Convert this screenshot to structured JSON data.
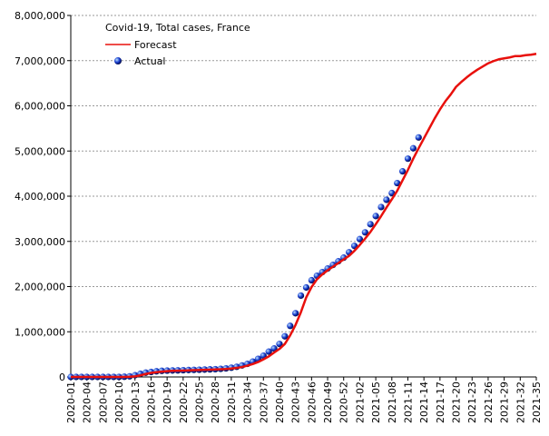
{
  "chart_data": {
    "type": "line",
    "title": "Covid-19, Total cases, France",
    "categories": [
      "2020-01",
      null,
      null,
      "2020-04",
      null,
      null,
      "2020-07",
      null,
      null,
      "2020-10",
      null,
      null,
      "2020-13",
      null,
      null,
      "2020-16",
      null,
      null,
      "2020-19",
      null,
      null,
      "2020-22",
      null,
      null,
      "2020-25",
      null,
      null,
      "2020-28",
      null,
      null,
      "2020-31",
      null,
      null,
      "2020-34",
      null,
      null,
      "2020-37",
      null,
      null,
      "2020-40",
      null,
      null,
      "2020-43",
      null,
      null,
      "2020-46",
      null,
      null,
      "2020-49",
      null,
      null,
      "2020-52",
      null,
      null,
      "2021-02",
      null,
      null,
      "2021-05",
      null,
      null,
      "2021-08",
      null,
      null,
      "2021-11",
      null,
      null,
      "2021-14",
      null,
      null,
      "2021-17",
      null,
      null,
      "2021-20",
      null,
      null,
      "2021-23",
      null,
      null,
      "2021-26",
      null,
      null,
      "2021-29",
      null,
      null,
      "2021-32",
      null,
      null,
      "2021-35"
    ],
    "series": [
      {
        "name": "Forecast",
        "color": "#e8100c",
        "style": "line",
        "values": [
          0,
          0,
          0,
          0,
          0,
          0,
          0,
          0,
          0,
          0,
          1000,
          4000,
          12000,
          35000,
          65000,
          90000,
          105000,
          118000,
          128000,
          135000,
          139000,
          142000,
          146000,
          150000,
          154000,
          158000,
          162000,
          166000,
          170000,
          177000,
          187000,
          200000,
          220000,
          250000,
          285000,
          330000,
          390000,
          455000,
          540000,
          620000,
          730000,
          920000,
          1150000,
          1430000,
          1760000,
          1990000,
          2160000,
          2270000,
          2360000,
          2440000,
          2520000,
          2600000,
          2680000,
          2790000,
          2920000,
          3060000,
          3210000,
          3380000,
          3560000,
          3750000,
          3930000,
          4120000,
          4350000,
          4580000,
          4830000,
          5060000,
          5280000,
          5500000,
          5720000,
          5920000,
          6100000,
          6250000,
          6420000,
          6530000,
          6630000,
          6720000,
          6800000,
          6870000,
          6940000,
          6990000,
          7030000,
          7050000,
          7070000,
          7100000,
          7100000,
          7120000,
          7130000,
          7150000
        ]
      },
      {
        "name": "Actual",
        "color": "#1a3fd0",
        "style": "points",
        "values": [
          0,
          0,
          0,
          0,
          0,
          0,
          0,
          100,
          400,
          1000,
          4500,
          14000,
          38000,
          70000,
          95000,
          110000,
          125000,
          135000,
          140000,
          143000,
          145000,
          150000,
          153000,
          157000,
          160000,
          164000,
          168000,
          172000,
          180000,
          190000,
          205000,
          225000,
          255000,
          290000,
          340000,
          400000,
          470000,
          560000,
          630000,
          730000,
          900000,
          1130000,
          1410000,
          1800000,
          1980000,
          2140000,
          2240000,
          2320000,
          2400000,
          2480000,
          2560000,
          2640000,
          2760000,
          2900000,
          3050000,
          3200000,
          3380000,
          3560000,
          3760000,
          3920000,
          4070000,
          4290000,
          4550000,
          4830000,
          5060000,
          5300000,
          null,
          null,
          null,
          null,
          null,
          null,
          null,
          null,
          null,
          null,
          null,
          null,
          null,
          null,
          null,
          null,
          null,
          null,
          null,
          null,
          null,
          null
        ]
      }
    ],
    "ylim": [
      0,
      8000000
    ],
    "yticks": [
      0,
      {
        "value": 1000000,
        "label": "1,000,000"
      },
      {
        "value": 2000000,
        "label": "2,000,000"
      },
      {
        "value": 3000000,
        "label": "3,000,000"
      },
      {
        "value": 4000000,
        "label": "4,000,000"
      },
      {
        "value": 5000000,
        "label": "5,000,000"
      },
      {
        "value": 6000000,
        "label": "6,000,000"
      },
      {
        "value": 7000000,
        "label": "7,000,000"
      },
      {
        "value": 8000000,
        "label": "8,000,000"
      }
    ],
    "grid": true,
    "legend": "top-left"
  }
}
